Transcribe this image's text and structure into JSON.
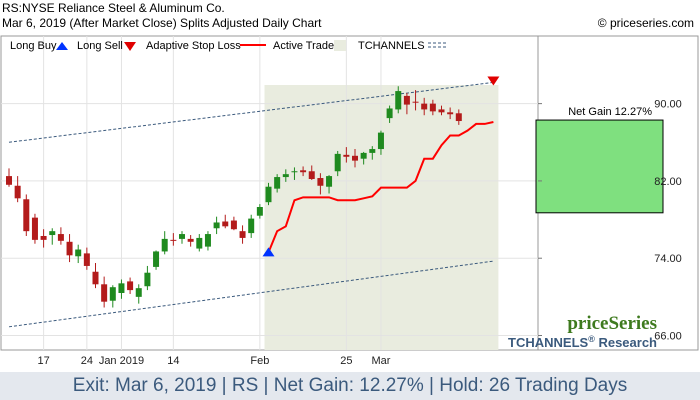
{
  "header": {
    "symbol_line": "RS:NYSE Reliance Steel & Aluminum Co.",
    "date_line": "Mar 6, 2019 (After Market Close)  Splits Adjusted Daily Chart",
    "copyright": "© priceseries.com"
  },
  "legend": {
    "long_buy": "Long Buy",
    "long_sell": "Long Sell",
    "adaptive_stop": "Adaptive Stop Loss",
    "active_trade": "Active Trade",
    "tchannels": "TCHANNELS"
  },
  "net_gain_label": "Net Gain 12.27%",
  "watermark": {
    "brand": "priceSeries",
    "tchannels": "TCHANNELS",
    "reg": "®",
    "research": "Research"
  },
  "footer": "Exit: Mar 6, 2019 | RS | Net Gain: 12.27% | Hold: 26 Trading Days",
  "colors": {
    "up": "#1f8a1f",
    "down": "#b31b1b",
    "stop": "#ff0000",
    "active_trade_bg": "#e9ecdf",
    "gain_box": "#7fe07f",
    "channel": "#3b5a7d",
    "buy_arrow": "#0033ff",
    "sell_arrow": "#e00000"
  },
  "chart_data": {
    "type": "candlestick",
    "ylim": [
      64.5,
      97
    ],
    "yticks": [
      66,
      74,
      82,
      90
    ],
    "x_ticks": [
      {
        "index": 4,
        "label": "17"
      },
      {
        "index": 9,
        "label": "24"
      },
      {
        "index": 13,
        "label": "Jan 2019"
      },
      {
        "index": 19,
        "label": "14"
      },
      {
        "index": 29,
        "label": "Feb"
      },
      {
        "index": 39,
        "label": "25"
      },
      {
        "index": 43,
        "label": "Mar"
      }
    ],
    "candles": [
      [
        82.5,
        83.3,
        81.4,
        81.6
      ],
      [
        81.5,
        82.5,
        79.8,
        80.2
      ],
      [
        80.1,
        80.6,
        76.3,
        76.8
      ],
      [
        78.2,
        78.6,
        75.5,
        75.9
      ],
      [
        76.3,
        77.0,
        75.1,
        75.9
      ],
      [
        76.4,
        77.1,
        75.4,
        76.8
      ],
      [
        76.5,
        77.2,
        75.4,
        75.8
      ],
      [
        75.7,
        76.5,
        73.6,
        74.3
      ],
      [
        74.2,
        75.4,
        73.5,
        74.9
      ],
      [
        74.5,
        75.1,
        72.8,
        73.2
      ],
      [
        72.6,
        73.5,
        70.9,
        71.3
      ],
      [
        71.3,
        72.1,
        68.9,
        69.5
      ],
      [
        69.6,
        71.2,
        68.9,
        71.0
      ],
      [
        70.4,
        71.8,
        69.8,
        71.4
      ],
      [
        71.6,
        72.0,
        70.3,
        70.7
      ],
      [
        70.0,
        71.3,
        69.3,
        70.9
      ],
      [
        71.1,
        73.2,
        70.7,
        72.5
      ],
      [
        73.1,
        74.8,
        72.8,
        74.7
      ],
      [
        74.7,
        76.8,
        74.4,
        76.0
      ],
      [
        75.9,
        76.6,
        75.3,
        75.8
      ],
      [
        76.0,
        76.8,
        75.5,
        76.5
      ],
      [
        76.0,
        76.4,
        75.2,
        75.7
      ],
      [
        75.0,
        76.5,
        74.7,
        76.1
      ],
      [
        75.2,
        76.8,
        74.8,
        76.5
      ],
      [
        77.1,
        78.3,
        76.5,
        77.7
      ],
      [
        77.8,
        78.5,
        77.1,
        77.3
      ],
      [
        77.9,
        78.3,
        76.9,
        77.0
      ],
      [
        76.8,
        77.4,
        75.5,
        76.1
      ],
      [
        76.6,
        78.5,
        76.1,
        78.1
      ],
      [
        78.4,
        79.6,
        78.1,
        79.3
      ],
      [
        79.8,
        81.8,
        79.5,
        81.4
      ],
      [
        81.2,
        82.7,
        80.8,
        82.4
      ],
      [
        82.4,
        83.2,
        81.9,
        82.7
      ],
      [
        82.9,
        83.4,
        82.1,
        83.0
      ],
      [
        83.1,
        83.5,
        82.5,
        82.9
      ],
      [
        83.0,
        83.6,
        82.1,
        82.2
      ],
      [
        82.3,
        82.8,
        80.6,
        81.5
      ],
      [
        81.4,
        82.6,
        80.7,
        82.5
      ],
      [
        83.0,
        85.1,
        82.5,
        84.8
      ],
      [
        84.7,
        85.5,
        83.9,
        84.5
      ],
      [
        84.6,
        85.3,
        83.4,
        84.1
      ],
      [
        84.3,
        85.0,
        83.7,
        84.9
      ],
      [
        84.9,
        85.6,
        84.2,
        85.3
      ],
      [
        85.3,
        87.2,
        84.7,
        87.0
      ],
      [
        88.5,
        89.8,
        88.0,
        89.5
      ],
      [
        89.4,
        91.8,
        89.0,
        91.3
      ],
      [
        90.8,
        91.1,
        88.9,
        89.9
      ],
      [
        90.2,
        91.4,
        89.3,
        90.1
      ],
      [
        90.0,
        90.6,
        88.8,
        89.4
      ],
      [
        90.0,
        90.4,
        88.8,
        89.2
      ],
      [
        89.4,
        89.8,
        88.8,
        89.1
      ],
      [
        89.1,
        89.6,
        88.4,
        88.9
      ],
      [
        89.0,
        89.4,
        87.8,
        88.2
      ]
    ],
    "stop_line": [
      [
        30,
        74.6
      ],
      [
        31,
        76.8
      ],
      [
        32,
        77.3
      ],
      [
        33,
        80.0
      ],
      [
        34,
        80.3
      ],
      [
        35,
        80.3
      ],
      [
        36,
        80.3
      ],
      [
        37,
        80.3
      ],
      [
        38,
        80.0
      ],
      [
        39,
        80.0
      ],
      [
        40,
        80.0
      ],
      [
        41,
        80.2
      ],
      [
        42,
        80.4
      ],
      [
        43,
        81.3
      ],
      [
        44,
        81.3
      ],
      [
        45,
        81.3
      ],
      [
        46,
        81.3
      ],
      [
        47,
        82.0
      ],
      [
        48,
        84.3
      ],
      [
        49,
        84.3
      ],
      [
        50,
        85.7
      ],
      [
        51,
        86.7
      ],
      [
        52,
        86.7
      ],
      [
        53,
        87.2
      ],
      [
        54,
        87.9
      ],
      [
        55,
        87.9
      ],
      [
        56,
        88.1
      ]
    ],
    "channel_upper": [
      [
        0,
        86.0
      ],
      [
        56,
        92.2
      ]
    ],
    "channel_lower": [
      [
        0,
        66.9
      ],
      [
        56,
        73.7
      ]
    ],
    "active_trade": {
      "start": 30,
      "end": 56
    },
    "buy": {
      "index": 30,
      "price": 74.6
    },
    "sell": {
      "index": 56,
      "price": 92.4
    },
    "gain_box": {
      "low": 78.7,
      "high": 88.3
    }
  }
}
